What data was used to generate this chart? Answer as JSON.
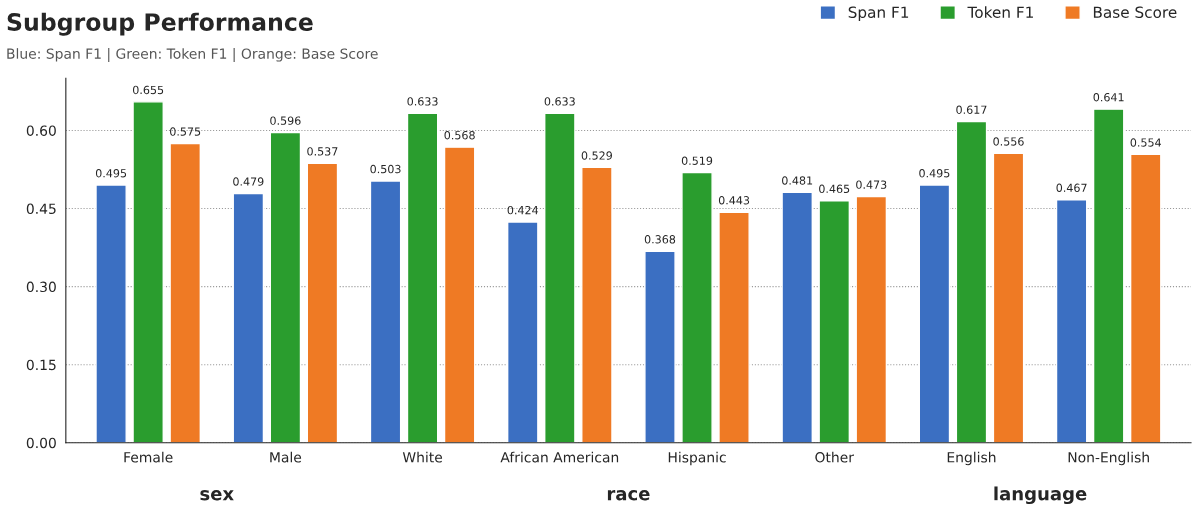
{
  "chart_data": {
    "type": "bar",
    "title": "Subgroup Performance",
    "subtitle": "Blue: Span F1 | Green: Token F1 | Orange: Base Score",
    "categories": [
      "Female",
      "Male",
      "White",
      "African American",
      "Hispanic",
      "Other",
      "English",
      "Non-English"
    ],
    "series": [
      {
        "name": "Span F1",
        "color": "#3b6fc2",
        "values": [
          0.495,
          0.479,
          0.503,
          0.424,
          0.368,
          0.481,
          0.495,
          0.467
        ]
      },
      {
        "name": "Token F1",
        "color": "#2a9d2e",
        "values": [
          0.655,
          0.596,
          0.633,
          0.633,
          0.519,
          0.465,
          0.617,
          0.641
        ]
      },
      {
        "name": "Base Score",
        "color": "#ef7a24",
        "values": [
          0.575,
          0.537,
          0.568,
          0.529,
          0.443,
          0.473,
          0.556,
          0.554
        ]
      }
    ],
    "ylim": [
      0,
      0.7
    ],
    "yticks": [
      {
        "value": 0,
        "label": "0.00"
      },
      {
        "value": 0.15,
        "label": "0.15"
      },
      {
        "value": 0.3,
        "label": "0.30"
      },
      {
        "value": 0.45,
        "label": "0.45"
      },
      {
        "value": 0.6,
        "label": "0.60"
      }
    ],
    "grid": "y",
    "legend": "top right",
    "data_labels": true,
    "annotations": [
      "sex",
      "race",
      "language"
    ]
  }
}
